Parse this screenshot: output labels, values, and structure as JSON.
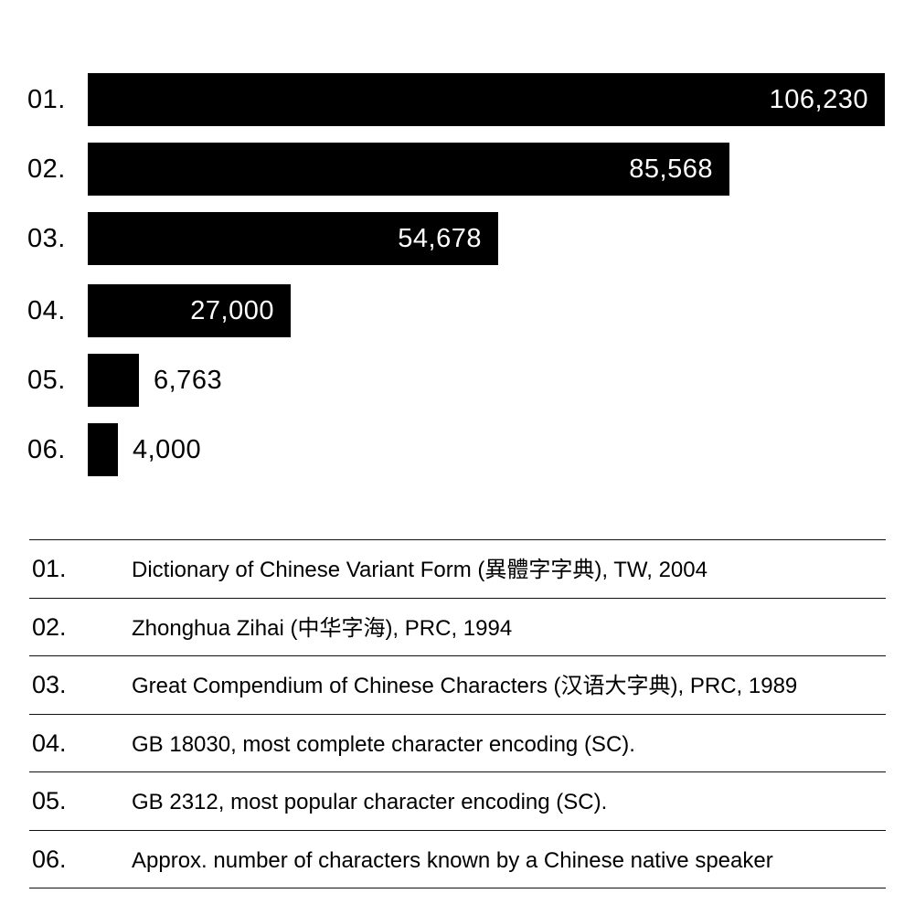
{
  "chart_data": {
    "type": "bar",
    "orientation": "horizontal",
    "title": "",
    "xlabel": "",
    "ylabel": "",
    "grid": false,
    "legend_position": "below",
    "categories": [
      "01.",
      "02.",
      "03.",
      "04.",
      "05.",
      "06."
    ],
    "values": [
      106230,
      85568,
      54678,
      27000,
      6763,
      4000
    ],
    "value_labels": [
      "106,230",
      "85,568",
      "54,678",
      "27,000",
      "6,763",
      "4,000"
    ],
    "xlim": [
      0,
      106230
    ],
    "bar_color": "#000000",
    "descriptions": [
      "Dictionary of Chinese Variant Form (異體字字典), TW, 2004",
      "Zhonghua Zihai (中华字海), PRC, 1994",
      "Great Compendium of Chinese Characters (汉语大字典), PRC, 1989",
      "GB 18030, most complete character encoding (SC).",
      "GB 2312, most popular character encoding (SC).",
      "Approx. number of characters known by a Chinese native speaker"
    ]
  },
  "bars": [
    {
      "rank": "01.",
      "value_label": "106,230"
    },
    {
      "rank": "02.",
      "value_label": "85,568"
    },
    {
      "rank": "03.",
      "value_label": "54,678"
    },
    {
      "rank": "04.",
      "value_label": "27,000"
    },
    {
      "rank": "05.",
      "value_label": "6,763"
    },
    {
      "rank": "06.",
      "value_label": "4,000"
    }
  ],
  "legend": [
    {
      "rank": "01.",
      "description": "Dictionary of Chinese Variant Form (異體字字典), TW, 2004"
    },
    {
      "rank": "02.",
      "description": "Zhonghua Zihai (中华字海), PRC, 1994"
    },
    {
      "rank": "03.",
      "description": "Great Compendium of Chinese Characters (汉语大字典), PRC, 1989"
    },
    {
      "rank": "04.",
      "description": "GB 18030, most complete character encoding (SC)."
    },
    {
      "rank": "05.",
      "description": "GB 2312, most popular character encoding (SC)."
    },
    {
      "rank": "06.",
      "description": "Approx. number of characters known by a Chinese native speaker"
    }
  ]
}
